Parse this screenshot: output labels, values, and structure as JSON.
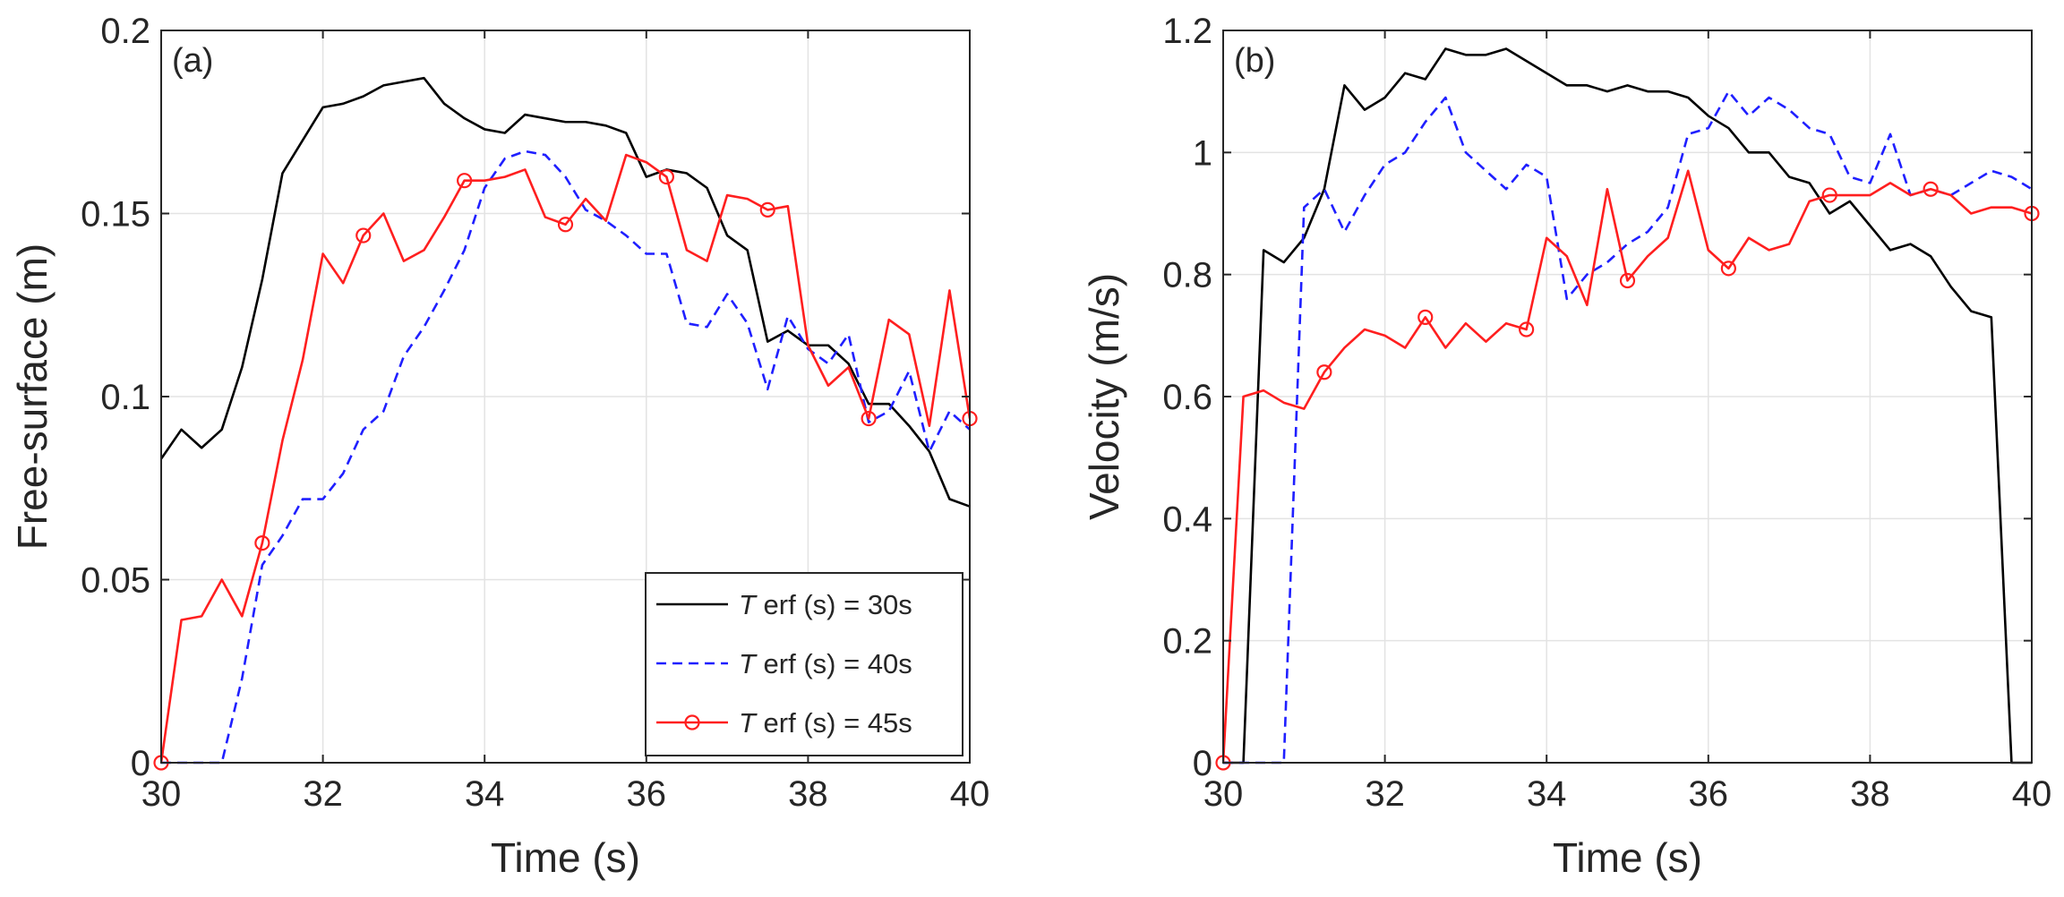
{
  "chart_data": [
    {
      "type": "line",
      "panel_label": "(a)",
      "xlabel": "Time (s)",
      "ylabel": "Free-surface (m)",
      "xlim": [
        30,
        40
      ],
      "ylim": [
        0,
        0.2
      ],
      "xticks": [
        30,
        32,
        34,
        36,
        38,
        40
      ],
      "xtick_labels": [
        "30",
        "32",
        "34",
        "36",
        "38",
        "40"
      ],
      "yticks": [
        0,
        0.05,
        0.1,
        0.15,
        0.2
      ],
      "ytick_labels": [
        "0",
        "0.05",
        "0.1",
        "0.15",
        "0.2"
      ],
      "grid": true,
      "legend_position": "bottom-right",
      "series": [
        {
          "name": "T erf (s) = 30s",
          "legend_italic": "T",
          "legend_rest": " erf (s) = 30s",
          "color": "#000000",
          "style": "solid",
          "marker": "none",
          "x": [
            30,
            30.25,
            30.5,
            30.75,
            31,
            31.25,
            31.5,
            31.75,
            32,
            32.25,
            32.5,
            32.75,
            33,
            33.25,
            33.5,
            33.75,
            34,
            34.25,
            34.5,
            34.75,
            35,
            35.25,
            35.5,
            35.75,
            36,
            36.25,
            36.5,
            36.75,
            37,
            37.25,
            37.5,
            37.75,
            38,
            38.25,
            38.5,
            38.75,
            39,
            39.25,
            39.5,
            39.75,
            40
          ],
          "y": [
            0.083,
            0.091,
            0.086,
            0.091,
            0.108,
            0.132,
            0.161,
            0.17,
            0.179,
            0.18,
            0.182,
            0.185,
            0.186,
            0.187,
            0.18,
            0.176,
            0.173,
            0.172,
            0.177,
            0.176,
            0.175,
            0.175,
            0.174,
            0.172,
            0.16,
            0.162,
            0.161,
            0.157,
            0.144,
            0.14,
            0.115,
            0.118,
            0.114,
            0.114,
            0.109,
            0.098,
            0.098,
            0.092,
            0.085,
            0.072,
            0.07
          ]
        },
        {
          "name": "T erf (s) = 40s",
          "legend_italic": "T",
          "legend_rest": " erf (s) = 40s",
          "color": "#1f1fff",
          "style": "dashed",
          "marker": "none",
          "x": [
            30,
            30.25,
            30.5,
            30.75,
            31,
            31.25,
            31.5,
            31.75,
            32,
            32.25,
            32.5,
            32.75,
            33,
            33.25,
            33.5,
            33.75,
            34,
            34.25,
            34.5,
            34.75,
            35,
            35.25,
            35.5,
            35.75,
            36,
            36.25,
            36.5,
            36.75,
            37,
            37.25,
            37.5,
            37.75,
            38,
            38.25,
            38.5,
            38.75,
            39,
            39.25,
            39.5,
            39.75,
            40
          ],
          "y": [
            0,
            0,
            0,
            0,
            0.023,
            0.054,
            0.062,
            0.072,
            0.072,
            0.079,
            0.091,
            0.096,
            0.111,
            0.119,
            0.129,
            0.14,
            0.157,
            0.165,
            0.167,
            0.166,
            0.16,
            0.151,
            0.148,
            0.144,
            0.139,
            0.139,
            0.12,
            0.119,
            0.128,
            0.12,
            0.102,
            0.122,
            0.113,
            0.109,
            0.117,
            0.093,
            0.096,
            0.107,
            0.085,
            0.096,
            0.091
          ]
        },
        {
          "name": "T erf (s) = 45s",
          "legend_italic": "T",
          "legend_rest": " erf (s) = 45s",
          "color": "#ff1f1f",
          "style": "solid",
          "marker": "circle",
          "marker_every": 5,
          "x": [
            30,
            30.25,
            30.5,
            30.75,
            31,
            31.25,
            31.5,
            31.75,
            32,
            32.25,
            32.5,
            32.75,
            33,
            33.25,
            33.5,
            33.75,
            34,
            34.25,
            34.5,
            34.75,
            35,
            35.25,
            35.5,
            35.75,
            36,
            36.25,
            36.5,
            36.75,
            37,
            37.25,
            37.5,
            37.75,
            38,
            38.25,
            38.5,
            38.75,
            39,
            39.25,
            39.5,
            39.75,
            40
          ],
          "y": [
            0,
            0.039,
            0.04,
            0.05,
            0.04,
            0.06,
            0.088,
            0.11,
            0.139,
            0.131,
            0.144,
            0.15,
            0.137,
            0.14,
            0.149,
            0.159,
            0.159,
            0.16,
            0.162,
            0.149,
            0.147,
            0.154,
            0.148,
            0.166,
            0.164,
            0.16,
            0.14,
            0.137,
            0.155,
            0.154,
            0.151,
            0.152,
            0.114,
            0.103,
            0.108,
            0.094,
            0.121,
            0.117,
            0.092,
            0.129,
            0.094
          ]
        }
      ]
    },
    {
      "type": "line",
      "panel_label": "(b)",
      "xlabel": "Time (s)",
      "ylabel": "Velocity (m/s)",
      "xlim": [
        30,
        40
      ],
      "ylim": [
        0,
        1.2
      ],
      "xticks": [
        30,
        32,
        34,
        36,
        38,
        40
      ],
      "xtick_labels": [
        "30",
        "32",
        "34",
        "36",
        "38",
        "40"
      ],
      "yticks": [
        0,
        0.2,
        0.4,
        0.6,
        0.8,
        1,
        1.2
      ],
      "ytick_labels": [
        "0",
        "0.2",
        "0.4",
        "0.6",
        "0.8",
        "1",
        "1.2"
      ],
      "grid": true,
      "series": [
        {
          "name": "T erf (s) = 30s",
          "color": "#000000",
          "style": "solid",
          "marker": "none",
          "x": [
            30,
            30.25,
            30.5,
            30.75,
            31,
            31.25,
            31.5,
            31.75,
            32,
            32.25,
            32.5,
            32.75,
            33,
            33.25,
            33.5,
            33.75,
            34,
            34.25,
            34.5,
            34.75,
            35,
            35.25,
            35.5,
            35.75,
            36,
            36.25,
            36.5,
            36.75,
            37,
            37.25,
            37.5,
            37.75,
            38,
            38.25,
            38.5,
            38.75,
            39,
            39.25,
            39.5,
            39.75,
            40
          ],
          "y": [
            0,
            0,
            0.84,
            0.82,
            0.86,
            0.94,
            1.11,
            1.07,
            1.09,
            1.13,
            1.12,
            1.17,
            1.16,
            1.16,
            1.17,
            1.15,
            1.13,
            1.11,
            1.11,
            1.1,
            1.11,
            1.1,
            1.1,
            1.09,
            1.06,
            1.04,
            1.0,
            1.0,
            0.96,
            0.95,
            0.9,
            0.92,
            0.88,
            0.84,
            0.85,
            0.83,
            0.78,
            0.74,
            0.73,
            0,
            0
          ]
        },
        {
          "name": "T erf (s) = 40s",
          "color": "#1f1fff",
          "style": "dashed",
          "marker": "none",
          "x": [
            30,
            30.25,
            30.5,
            30.75,
            31,
            31.25,
            31.5,
            31.75,
            32,
            32.25,
            32.5,
            32.75,
            33,
            33.25,
            33.5,
            33.75,
            34,
            34.25,
            34.5,
            34.75,
            35,
            35.25,
            35.5,
            35.75,
            36,
            36.25,
            36.5,
            36.75,
            37,
            37.25,
            37.5,
            37.75,
            38,
            38.25,
            38.5,
            38.75,
            39,
            39.25,
            39.5,
            39.75,
            40
          ],
          "y": [
            0,
            0,
            0,
            0,
            0.91,
            0.94,
            0.87,
            0.93,
            0.98,
            1.0,
            1.05,
            1.09,
            1.0,
            0.97,
            0.94,
            0.98,
            0.96,
            0.76,
            0.8,
            0.82,
            0.85,
            0.87,
            0.91,
            1.03,
            1.04,
            1.1,
            1.06,
            1.09,
            1.07,
            1.04,
            1.03,
            0.96,
            0.95,
            1.03,
            0.93,
            0.94,
            0.93,
            0.95,
            0.97,
            0.96,
            0.94
          ]
        },
        {
          "name": "T erf (s) = 45s",
          "color": "#ff1f1f",
          "style": "solid",
          "marker": "circle",
          "marker_every": 5,
          "x": [
            30,
            30.25,
            30.5,
            30.75,
            31,
            31.25,
            31.5,
            31.75,
            32,
            32.25,
            32.5,
            32.75,
            33,
            33.25,
            33.5,
            33.75,
            34,
            34.25,
            34.5,
            34.75,
            35,
            35.25,
            35.5,
            35.75,
            36,
            36.25,
            36.5,
            36.75,
            37,
            37.25,
            37.5,
            37.75,
            38,
            38.25,
            38.5,
            38.75,
            39,
            39.25,
            39.5,
            39.75,
            40
          ],
          "y": [
            0,
            0.6,
            0.61,
            0.59,
            0.58,
            0.64,
            0.68,
            0.71,
            0.7,
            0.68,
            0.73,
            0.68,
            0.72,
            0.69,
            0.72,
            0.71,
            0.86,
            0.83,
            0.75,
            0.94,
            0.79,
            0.83,
            0.86,
            0.97,
            0.84,
            0.81,
            0.86,
            0.84,
            0.85,
            0.92,
            0.93,
            0.93,
            0.93,
            0.95,
            0.93,
            0.94,
            0.93,
            0.9,
            0.91,
            0.91,
            0.9
          ]
        }
      ]
    }
  ]
}
